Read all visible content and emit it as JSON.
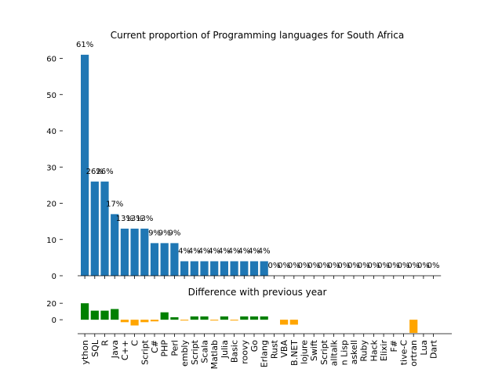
{
  "chart_data": [
    {
      "type": "bar",
      "title": "Current proportion of Programming languages for South Africa",
      "categories": [
        "Python",
        "SQL",
        "R",
        "Java",
        "C++",
        "C",
        "TypeScript",
        "C#",
        "PHP",
        "Perl",
        "Assembly",
        "JavaScript",
        "Scala",
        "Matlab",
        "Julia",
        "Visual Basic",
        "Groovy",
        "Go",
        "Erlang",
        "Rust",
        "VBA",
        "VB.NET",
        "Clojure",
        "Swift",
        "CoffeeScript",
        "Smalltalk",
        "Common Lisp",
        "Haskell",
        "Ruby",
        "Hack",
        "Elixir",
        "F#",
        "Objective-C",
        "Fortran",
        "Lua",
        "Dart"
      ],
      "tick_labels_visible": [
        "ython",
        "SQL",
        "R",
        "Java",
        "C++",
        "C",
        "Script",
        "C#",
        "PHP",
        "Perl",
        "embly",
        "Script",
        "Scala",
        "Matlab",
        "Julia",
        "Basic",
        "roovy",
        "Go",
        "Erlang",
        "Rust",
        "VBA",
        "B.NET",
        "lojure",
        "Swift",
        "Script",
        "alltalk",
        "n Lisp",
        "askell",
        "Ruby",
        "Hack",
        "Elixir",
        "F#",
        "tive-C",
        "ortran",
        "Lua",
        "Dart"
      ],
      "values": [
        61,
        26,
        26,
        17,
        13,
        13,
        13,
        9,
        9,
        9,
        4,
        4,
        4,
        4,
        4,
        4,
        4,
        4,
        4,
        0,
        0,
        0,
        0,
        0,
        0,
        0,
        0,
        0,
        0,
        0,
        0,
        0,
        0,
        0,
        0,
        0
      ],
      "data_labels": [
        "61%",
        "26%",
        "26%",
        "17%",
        "13%",
        "13%",
        "13%",
        "9%",
        "9%",
        "9%",
        "4%",
        "4%",
        "4%",
        "4%",
        "4%",
        "4%",
        "4%",
        "4%",
        "4%",
        "0%",
        "0%",
        "0%",
        "0%",
        "0%",
        "0%",
        "0%",
        "0%",
        "0%",
        "0%",
        "0%",
        "0%",
        "0%",
        "0%",
        "0%",
        "0%",
        "0%"
      ],
      "yticks": [
        0,
        10,
        20,
        30,
        40,
        50,
        60
      ],
      "ylim": [
        0,
        64
      ],
      "color": "#1f77b4"
    },
    {
      "type": "bar",
      "title": "Difference with previous year",
      "values": [
        20,
        11,
        11,
        13,
        -3,
        -7,
        -3,
        -2,
        9,
        3,
        -1,
        4,
        4,
        -1,
        4,
        -1,
        4,
        4,
        4,
        0,
        -6,
        -6,
        0,
        0,
        0,
        0,
        0,
        0,
        0,
        0,
        0,
        0,
        0,
        -16,
        0,
        0
      ],
      "yticks": [
        0,
        20
      ],
      "ylim": [
        -17,
        23
      ],
      "positive_color": "#008000",
      "negative_color": "#ffa500"
    }
  ]
}
